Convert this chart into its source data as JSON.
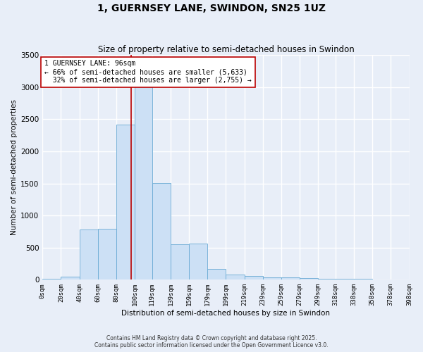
{
  "title": "1, GUERNSEY LANE, SWINDON, SN25 1UZ",
  "subtitle": "Size of property relative to semi-detached houses in Swindon",
  "xlabel": "Distribution of semi-detached houses by size in Swindon",
  "ylabel": "Number of semi-detached properties",
  "property_size": 96,
  "property_label": "1 GUERNSEY LANE: 96sqm",
  "pct_smaller": 66,
  "n_smaller": 5633,
  "pct_larger": 32,
  "n_larger": 2755,
  "bar_color": "#cce0f5",
  "bar_edge_color": "#6aaad4",
  "red_line_color": "#bb0000",
  "annotation_box_color": "#ffffff",
  "annotation_box_edge": "#bb0000",
  "background_color": "#e8eef8",
  "grid_color": "#ffffff",
  "bin_edges": [
    0,
    20,
    40,
    60,
    80,
    100,
    119,
    139,
    159,
    179,
    199,
    219,
    239,
    259,
    279,
    299,
    318,
    338,
    358,
    378,
    398
  ],
  "bin_heights": [
    20,
    50,
    780,
    790,
    2420,
    3200,
    1510,
    550,
    560,
    165,
    80,
    60,
    40,
    35,
    25,
    20,
    15,
    10,
    8,
    8
  ],
  "ylim": [
    0,
    3500
  ],
  "title_fontsize": 10,
  "subtitle_fontsize": 8.5,
  "axis_label_fontsize": 7.5,
  "tick_fontsize": 6.5,
  "annotation_fontsize": 7,
  "footer_text": "Contains HM Land Registry data © Crown copyright and database right 2025.\nContains public sector information licensed under the Open Government Licence v3.0."
}
